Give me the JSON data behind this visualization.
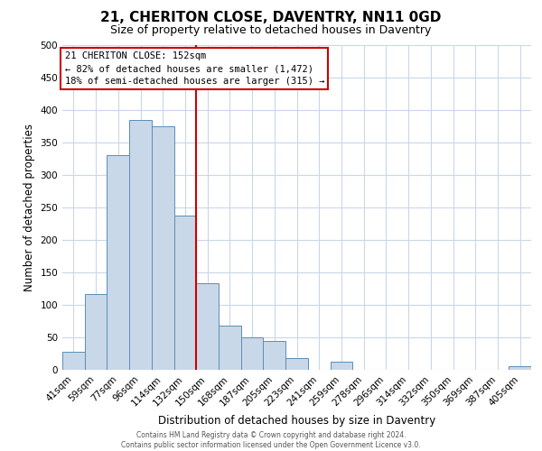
{
  "title": "21, CHERITON CLOSE, DAVENTRY, NN11 0GD",
  "subtitle": "Size of property relative to detached houses in Daventry",
  "xlabel": "Distribution of detached houses by size in Daventry",
  "ylabel": "Number of detached properties",
  "categories": [
    "41sqm",
    "59sqm",
    "77sqm",
    "96sqm",
    "114sqm",
    "132sqm",
    "150sqm",
    "168sqm",
    "187sqm",
    "205sqm",
    "223sqm",
    "241sqm",
    "259sqm",
    "278sqm",
    "296sqm",
    "314sqm",
    "332sqm",
    "350sqm",
    "369sqm",
    "387sqm",
    "405sqm"
  ],
  "values": [
    28,
    117,
    330,
    385,
    375,
    238,
    133,
    68,
    50,
    45,
    18,
    0,
    13,
    0,
    0,
    0,
    0,
    0,
    0,
    0,
    5
  ],
  "bar_color": "#c8d8e8",
  "bar_edge_color": "#5b8db8",
  "ylim": [
    0,
    500
  ],
  "yticks": [
    0,
    50,
    100,
    150,
    200,
    250,
    300,
    350,
    400,
    450,
    500
  ],
  "property_line_index": 6,
  "property_line_color": "#cc0000",
  "annotation_line1": "21 CHERITON CLOSE: 152sqm",
  "annotation_line2": "← 82% of detached houses are smaller (1,472)",
  "annotation_line3": "18% of semi-detached houses are larger (315) →",
  "annotation_box_color": "#cc0000",
  "grid_color": "#c8d8e8",
  "footer_line1": "Contains HM Land Registry data © Crown copyright and database right 2024.",
  "footer_line2": "Contains public sector information licensed under the Open Government Licence v3.0.",
  "bg_color": "#ffffff",
  "title_fontsize": 11,
  "subtitle_fontsize": 9,
  "axis_label_fontsize": 8.5,
  "tick_fontsize": 7.5,
  "annotation_fontsize": 7.5,
  "footer_fontsize": 5.5
}
